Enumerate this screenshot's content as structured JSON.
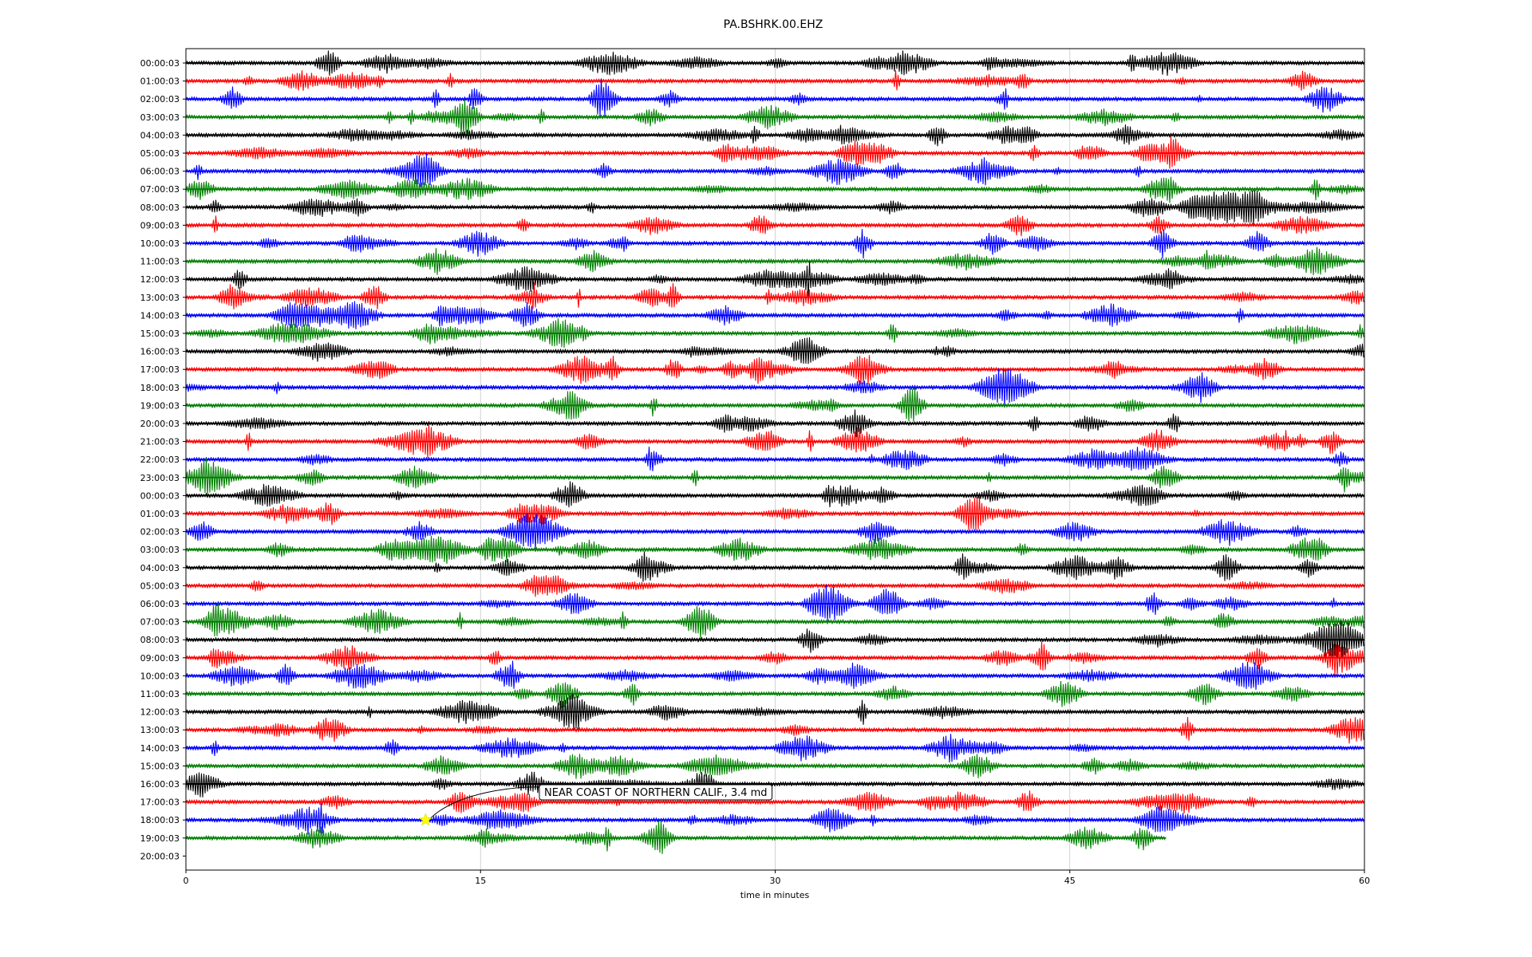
{
  "chart_data": {
    "type": "line",
    "title": "PA.BSHRK.00.EHZ",
    "xlabel": "time in minutes",
    "xlim": [
      0,
      60
    ],
    "x_ticks": [
      "0",
      "15",
      "30",
      "45",
      "60"
    ],
    "x_tick_values": [
      0,
      15,
      30,
      45,
      60
    ],
    "grid_x": true,
    "series_colors": [
      "#000000",
      "#ff0000",
      "#0000ff",
      "#008000"
    ],
    "rows": [
      {
        "label": "00:00:03",
        "end": 60
      },
      {
        "label": "01:00:03",
        "end": 60
      },
      {
        "label": "02:00:03",
        "end": 60
      },
      {
        "label": "03:00:03",
        "end": 60
      },
      {
        "label": "04:00:03",
        "end": 60
      },
      {
        "label": "05:00:03",
        "end": 60
      },
      {
        "label": "06:00:03",
        "end": 60
      },
      {
        "label": "07:00:03",
        "end": 60
      },
      {
        "label": "08:00:03",
        "end": 60
      },
      {
        "label": "09:00:03",
        "end": 60
      },
      {
        "label": "10:00:03",
        "end": 60
      },
      {
        "label": "11:00:03",
        "end": 60
      },
      {
        "label": "12:00:03",
        "end": 60
      },
      {
        "label": "13:00:03",
        "end": 60
      },
      {
        "label": "14:00:03",
        "end": 60
      },
      {
        "label": "15:00:03",
        "end": 60
      },
      {
        "label": "16:00:03",
        "end": 60
      },
      {
        "label": "17:00:03",
        "end": 60
      },
      {
        "label": "18:00:03",
        "end": 60
      },
      {
        "label": "19:00:03",
        "end": 60
      },
      {
        "label": "20:00:03",
        "end": 60
      },
      {
        "label": "21:00:03",
        "end": 60
      },
      {
        "label": "22:00:03",
        "end": 60
      },
      {
        "label": "23:00:03",
        "end": 60
      },
      {
        "label": "00:00:03",
        "end": 60
      },
      {
        "label": "01:00:03",
        "end": 60
      },
      {
        "label": "02:00:03",
        "end": 60
      },
      {
        "label": "03:00:03",
        "end": 60
      },
      {
        "label": "04:00:03",
        "end": 60
      },
      {
        "label": "05:00:03",
        "end": 60
      },
      {
        "label": "06:00:03",
        "end": 60
      },
      {
        "label": "07:00:03",
        "end": 60
      },
      {
        "label": "08:00:03",
        "end": 60
      },
      {
        "label": "09:00:03",
        "end": 60
      },
      {
        "label": "10:00:03",
        "end": 60
      },
      {
        "label": "11:00:03",
        "end": 60
      },
      {
        "label": "12:00:03",
        "end": 60
      },
      {
        "label": "13:00:03",
        "end": 60
      },
      {
        "label": "14:00:03",
        "end": 60
      },
      {
        "label": "15:00:03",
        "end": 60
      },
      {
        "label": "16:00:03",
        "end": 60
      },
      {
        "label": "17:00:03",
        "end": 60
      },
      {
        "label": "18:00:03",
        "end": 60
      },
      {
        "label": "19:00:03",
        "end": 49.9
      },
      {
        "label": "20:00:03",
        "end": 0
      }
    ],
    "event": {
      "label": "NEAR COAST OF NORTHERN CALIF., 3.4 md",
      "row": 42,
      "x": 12.2,
      "marker": "star",
      "marker_color": "#ffff00"
    }
  }
}
